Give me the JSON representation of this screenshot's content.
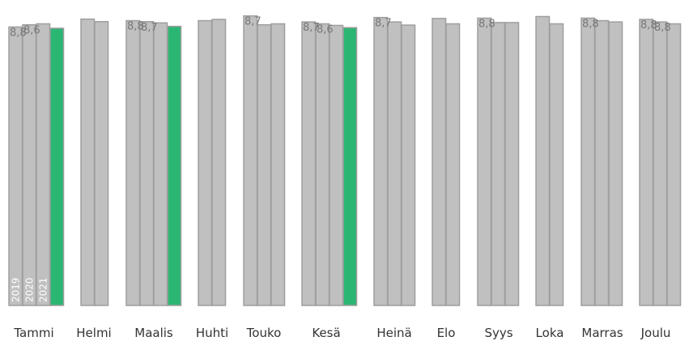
{
  "chart_data": {
    "type": "bar",
    "categories": [
      "Tammi",
      "Helmi",
      "Maalis",
      "Huhti",
      "Touko",
      "Kesä",
      "Heinä",
      "Elo",
      "Syys",
      "Loka",
      "Marras",
      "Joulu"
    ],
    "series_labels": [
      "2019",
      "2020",
      "2021"
    ],
    "ylim": [
      0,
      9.5
    ],
    "colors": {
      "default": "#c0c0c0",
      "highlight": "#2bb673",
      "stroke": "#9e9e9e"
    },
    "groups": [
      {
        "values": [
          8.8,
          8.87,
          8.9,
          8.76
        ],
        "colors": [
          "#c0c0c0",
          "#c0c0c0",
          "#c0c0c0",
          "#2bb673"
        ],
        "labels": [
          "8,8",
          "8,6",
          "",
          ""
        ]
      },
      {
        "values": [
          9.05,
          8.97
        ],
        "colors": [
          "#c0c0c0",
          "#c0c0c0"
        ],
        "labels": [
          "",
          ""
        ]
      },
      {
        "values": [
          9.0,
          8.97,
          8.93,
          8.82
        ],
        "colors": [
          "#c0c0c0",
          "#c0c0c0",
          "#c0c0c0",
          "#2bb673"
        ],
        "labels": [
          "8,8",
          "8,7",
          "",
          ""
        ]
      },
      {
        "values": [
          9.0,
          9.04
        ],
        "colors": [
          "#c0c0c0",
          "#c0c0c0"
        ],
        "labels": [
          "",
          ""
        ]
      },
      {
        "values": [
          9.15,
          8.87,
          8.9
        ],
        "colors": [
          "#c0c0c0",
          "#c0c0c0",
          "#c0c0c0"
        ],
        "labels": [
          "8,7",
          "",
          ""
        ]
      },
      {
        "values": [
          8.96,
          8.9,
          8.85,
          8.78
        ],
        "colors": [
          "#c0c0c0",
          "#c0c0c0",
          "#c0c0c0",
          "#2bb673"
        ],
        "labels": [
          "8,7",
          "8,6",
          "",
          ""
        ]
      },
      {
        "values": [
          9.1,
          8.96,
          8.86
        ],
        "colors": [
          "#c0c0c0",
          "#c0c0c0",
          "#c0c0c0"
        ],
        "labels": [
          "8,7",
          "",
          ""
        ]
      },
      {
        "values": [
          9.07,
          8.9
        ],
        "colors": [
          "#c0c0c0",
          "#c0c0c0"
        ],
        "labels": [
          "",
          ""
        ]
      },
      {
        "values": [
          9.08,
          8.94,
          8.94
        ],
        "colors": [
          "#c0c0c0",
          "#c0c0c0",
          "#c0c0c0"
        ],
        "labels": [
          "8,8",
          "",
          ""
        ]
      },
      {
        "values": [
          9.13,
          8.9
        ],
        "colors": [
          "#c0c0c0",
          "#c0c0c0"
        ],
        "labels": [
          "",
          ""
        ]
      },
      {
        "values": [
          9.08,
          9.0,
          8.96
        ],
        "colors": [
          "#c0c0c0",
          "#c0c0c0",
          "#c0c0c0"
        ],
        "labels": [
          "8,8",
          "",
          ""
        ]
      },
      {
        "values": [
          9.04,
          8.96,
          8.9
        ],
        "colors": [
          "#c0c0c0",
          "#c0c0c0",
          "#c0c0c0"
        ],
        "labels": [
          "8,8",
          "8,8",
          ""
        ]
      }
    ]
  }
}
